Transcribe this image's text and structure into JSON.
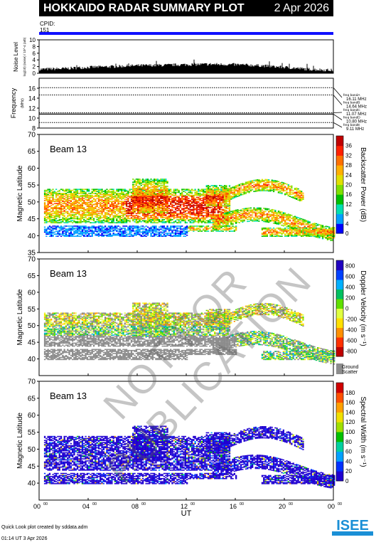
{
  "header": {
    "title": "HOKKAIDO RADAR SUMMARY PLOT",
    "date": "2 Apr 2026"
  },
  "cpid": {
    "label": "CPID:",
    "value": "151"
  },
  "footer": {
    "line1": "Quick Look plot created by sddata.adm",
    "line2": "01:14 UT  3 Apr 2026"
  },
  "watermark": "NOT FOR PUBLICATION",
  "logo": {
    "text": "ISEE",
    "colors": [
      "#1a8fd6",
      "#2bb24c"
    ]
  },
  "chart_data": [
    {
      "type": "bar",
      "name": "noise",
      "ylabel": "Noise Level",
      "ylabel_sub": "log(10) (noise) / 10^-4 (arb)",
      "ylim": [
        0,
        10
      ],
      "yticks": [
        0,
        2,
        4,
        6,
        8,
        10
      ],
      "xlim_hours": [
        0,
        24
      ],
      "profile_hours": [
        0,
        2,
        4,
        6,
        8,
        10,
        12,
        14,
        16,
        18,
        20,
        22,
        24
      ],
      "profile_values": [
        1.2,
        1.4,
        1.8,
        2.0,
        2.3,
        2.4,
        2.6,
        2.7,
        2.6,
        2.3,
        1.8,
        1.2,
        0.9
      ]
    },
    {
      "type": "line",
      "name": "frequency",
      "ylabel": "Frequency",
      "yunit": "(MHz)",
      "ylim": [
        8,
        18
      ],
      "yticks": [
        8,
        10,
        12,
        14,
        16
      ],
      "bands": [
        {
          "label": "freq bandA",
          "value": "16.11 MHz",
          "mhz": 16.11
        },
        {
          "label": "freq bandB",
          "value": "14.64 MHz",
          "mhz": 14.64
        },
        {
          "label": "freq bandC",
          "value": "11.07 MHz",
          "mhz": 11.07
        },
        {
          "label": "freq bandD",
          "value": "10.80 MHz",
          "mhz": 10.8
        },
        {
          "label": "freq bandE",
          "value": "9.11 MHz",
          "mhz": 9.11
        }
      ],
      "operating_mhz": 10.8
    },
    {
      "type": "heatmap",
      "name": "power",
      "label": "Beam 13",
      "ylabel": "Magnetic Latitude",
      "ylim": [
        35,
        70
      ],
      "yticks": [
        35,
        40,
        45,
        50,
        55,
        60,
        65,
        70
      ],
      "colorbar_label": "Backscatter Power (dB)",
      "colorbar_ticks": [
        0,
        4,
        8,
        12,
        16,
        20,
        24,
        28,
        32,
        36
      ],
      "colorbar_range": [
        0,
        40
      ],
      "palette": [
        "#0000ff",
        "#00a0ff",
        "#00e0b0",
        "#00c000",
        "#80e000",
        "#e0e000",
        "#ffb000",
        "#ff7000",
        "#ff2000",
        "#c00000"
      ],
      "ground_scatter": false
    },
    {
      "type": "heatmap",
      "name": "velocity",
      "label": "Beam 13",
      "ylabel": "Magnetic Latitude",
      "ylim": [
        35,
        70
      ],
      "yticks": [
        40,
        45,
        50,
        55,
        60,
        65,
        70
      ],
      "colorbar_label": "Doppler Velocity (m s⁻¹)",
      "colorbar_ticks": [
        -800,
        -600,
        -400,
        -200,
        0,
        200,
        400,
        600,
        800
      ],
      "colorbar_range": [
        -900,
        900
      ],
      "palette": [
        "#c00000",
        "#ff3000",
        "#ff9000",
        "#ffe000",
        "#e0ff40",
        "#60e000",
        "#00c060",
        "#00b0ff",
        "#0040ff",
        "#2000c0"
      ],
      "ground_scatter": true,
      "ground_label": "Ground",
      "scatter_label": "Scatter"
    },
    {
      "type": "heatmap",
      "name": "width",
      "label": "Beam 13",
      "ylabel": "Magnetic Latitude",
      "ylim": [
        35,
        70
      ],
      "yticks": [
        40,
        45,
        50,
        55,
        60,
        65,
        70
      ],
      "colorbar_label": "Spectral Width (m s⁻¹)",
      "colorbar_ticks": [
        0,
        20,
        40,
        60,
        80,
        100,
        120,
        140,
        160,
        180
      ],
      "colorbar_range": [
        0,
        200
      ],
      "palette": [
        "#2000d0",
        "#0030ff",
        "#00a0ff",
        "#00d0a0",
        "#00c000",
        "#a0e000",
        "#f0e000",
        "#ffa000",
        "#ff5000",
        "#d00000"
      ],
      "ground_scatter": false
    }
  ],
  "xaxis": {
    "label": "UT",
    "ticks": [
      {
        "base": "00",
        "sup": "00",
        "hour": 0
      },
      {
        "base": "04",
        "sup": "00",
        "hour": 4
      },
      {
        "base": "08",
        "sup": "00",
        "hour": 8
      },
      {
        "base": "12",
        "sup": "00",
        "hour": 12
      },
      {
        "base": "16",
        "sup": "00",
        "hour": 16
      },
      {
        "base": "20",
        "sup": "00",
        "hour": 20
      },
      {
        "base": "00",
        "sup": "00",
        "hour": 24
      }
    ]
  }
}
